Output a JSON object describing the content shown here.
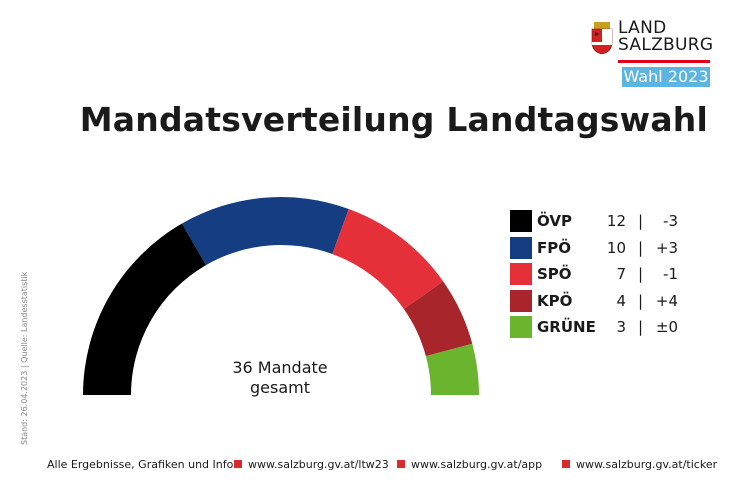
{
  "logo": {
    "line1": "LAND",
    "line2": "SALZBURG",
    "wahl": "Wahl 2023",
    "brand_color": "#e3001b",
    "badge_color": "#5bb5e0"
  },
  "side_note": "Stand: 26.04.2023 | Quelle: Landesstatistik",
  "footer": {
    "intro": "Alle Ergebnisse, Grafiken und Infos:",
    "links": [
      "www.salzburg.gv.at/ltw23",
      "www.salzburg.gv.at/app",
      "www.salzburg.gv.at/ticker"
    ]
  },
  "chart_data": {
    "type": "pie",
    "title": "Mandatsverteilung Landtagswahl",
    "center_label_line1": "36 Mandate",
    "center_label_line2": "gesamt",
    "total": 36,
    "legend_position": "right",
    "categories": [
      "ÖVP",
      "FPÖ",
      "SPÖ",
      "KPÖ",
      "GRÜNE"
    ],
    "values": [
      12,
      10,
      7,
      4,
      3
    ],
    "changes": [
      "-3",
      "+3",
      "-1",
      "+4",
      "±0"
    ],
    "colors": [
      "#000000",
      "#143d82",
      "#e5303a",
      "#a8262b",
      "#6bb42e"
    ]
  }
}
